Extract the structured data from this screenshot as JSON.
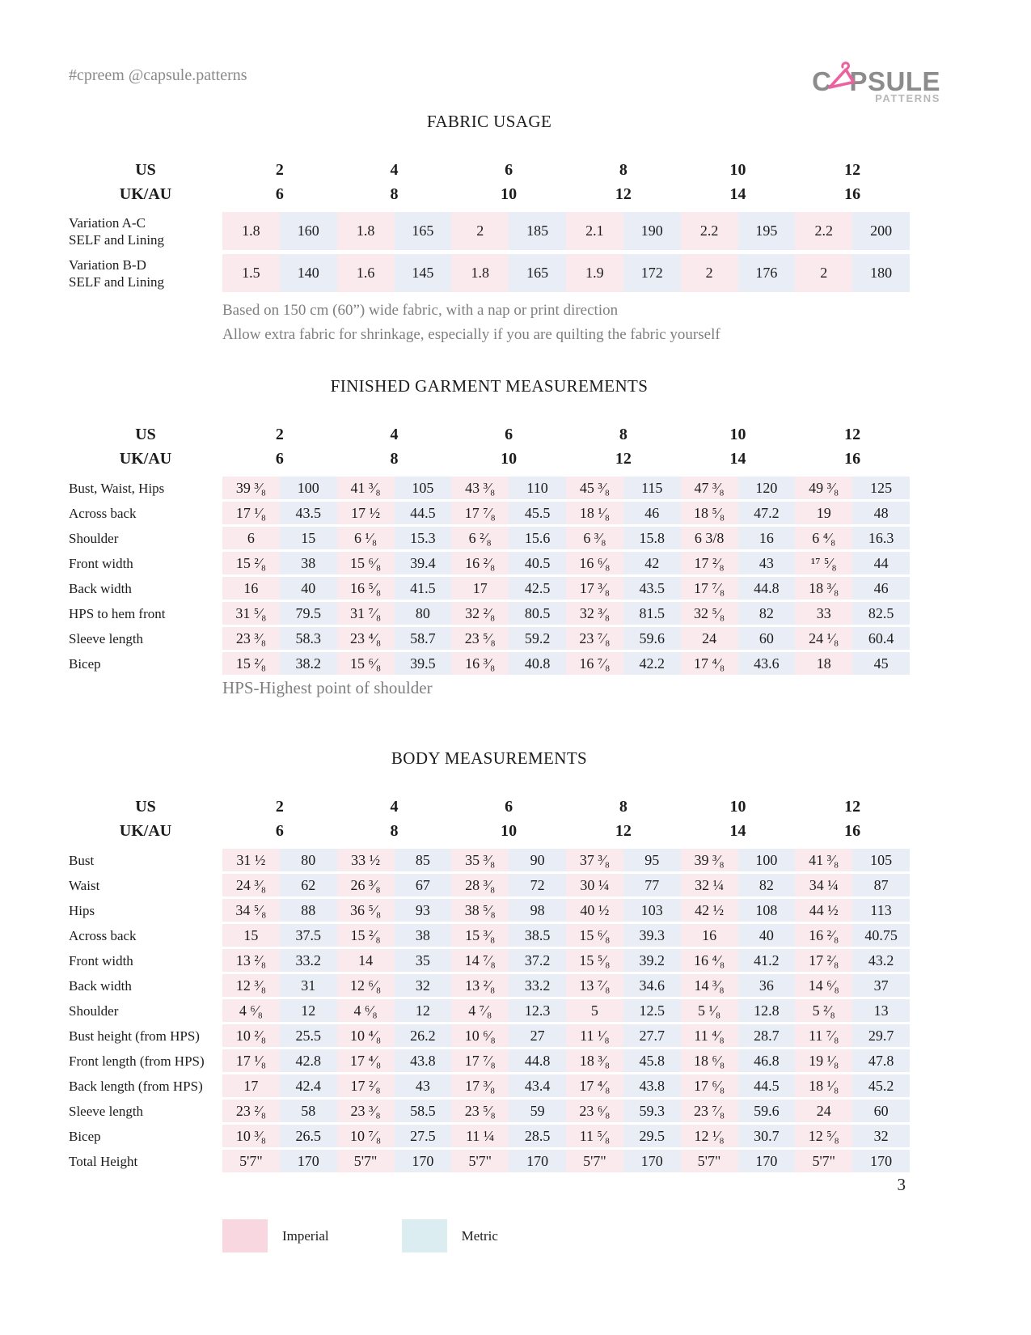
{
  "header": {
    "handle": "#cpreem @capsule.patterns"
  },
  "logo": {
    "part1": "C",
    "part2": "PSULE",
    "subtitle": "PATTERNS",
    "accent_color": "#ec619f",
    "text_color": "#8c8c8c"
  },
  "colors": {
    "imperial_cell": "#fbeaed",
    "metric_cell": "#e9eef6",
    "imperial_swatch": "#f9d7e1",
    "metric_swatch": "#dcedf2"
  },
  "size_header": {
    "us_label": "US",
    "ukau_label": "UK/AU",
    "us": [
      "2",
      "4",
      "6",
      "8",
      "10",
      "12"
    ],
    "ukau": [
      "6",
      "8",
      "10",
      "12",
      "14",
      "16"
    ]
  },
  "fabric_usage": {
    "title": "FABRIC USAGE",
    "rows": [
      {
        "label_lines": [
          "Variation A-C",
          "SELF and Lining"
        ],
        "values": [
          "1.8",
          "160",
          "1.8",
          "165",
          "2",
          "185",
          "2.1",
          "190",
          "2.2",
          "195",
          "2.2",
          "200"
        ]
      },
      {
        "label_lines": [
          "Variation B-D",
          "SELF and Lining"
        ],
        "values": [
          "1.5",
          "140",
          "1.6",
          "145",
          "1.8",
          "165",
          "1.9",
          "172",
          "2",
          "176",
          "2",
          "180"
        ]
      }
    ],
    "notes": [
      "Based on 150 cm (60”) wide fabric, with a nap or print direction",
      "Allow extra fabric for shrinkage, especially if you are quilting the fabric yourself"
    ]
  },
  "finished_garment": {
    "title": "FINISHED GARMENT MEASUREMENTS",
    "note": "HPS-Highest point of shoulder",
    "rows": [
      {
        "label": "Bust, Waist, Hips",
        "values": [
          "39 ³⁄₈",
          "100",
          "41 ³⁄₈",
          "105",
          "43 ³⁄₈",
          "110",
          "45 ³⁄₈",
          "115",
          "47 ³⁄₈",
          "120",
          "49 ³⁄₈",
          "125"
        ]
      },
      {
        "label": "Across back",
        "values": [
          "17 ¹⁄₈",
          "43.5",
          "17 ½",
          "44.5",
          "17 ⁷⁄₈",
          "45.5",
          "18 ¹⁄₈",
          "46",
          "18 ⁵⁄₈",
          "47.2",
          "19",
          "48"
        ]
      },
      {
        "label": "Shoulder",
        "values": [
          "6",
          "15",
          "6 ¹⁄₈",
          "15.3",
          "6 ²⁄₈",
          "15.6",
          "6 ³⁄₈",
          "15.8",
          "6 3/8",
          "16",
          "6 ⁴⁄₈",
          "16.3"
        ]
      },
      {
        "label": "Front width",
        "values": [
          "15 ²⁄₈",
          "38",
          "15 ⁶⁄₈",
          "39.4",
          "16 ²⁄₈",
          "40.5",
          "16 ⁶⁄₈",
          "42",
          "17 ²⁄₈",
          "43",
          "¹⁷ ⁵⁄₈",
          "44"
        ]
      },
      {
        "label": "Back width",
        "values": [
          "16",
          "40",
          "16 ⁵⁄₈",
          "41.5",
          "17",
          "42.5",
          "17 ³⁄₈",
          "43.5",
          "17 ⁷⁄₈",
          "44.8",
          "18 ³⁄₈",
          "46"
        ]
      },
      {
        "label": "HPS to hem front",
        "values": [
          "31 ⁵⁄₈",
          "79.5",
          "31 ⁷⁄₈",
          "80",
          "32 ²⁄₈",
          "80.5",
          "32 ³⁄₈",
          "81.5",
          "32 ⁵⁄₈",
          "82",
          "33",
          "82.5"
        ]
      },
      {
        "label": "Sleeve length",
        "values": [
          "23 ³⁄₈",
          "58.3",
          "23 ⁴⁄₈",
          "58.7",
          "23 ⁵⁄₈",
          "59.2",
          "23 ⁷⁄₈",
          "59.6",
          "24",
          "60",
          "24 ¹⁄₈",
          "60.4"
        ]
      },
      {
        "label": "Bicep",
        "values": [
          "15 ²⁄₈",
          "38.2",
          "15 ⁶⁄₈",
          "39.5",
          "16 ³⁄₈",
          "40.8",
          "16 ⁷⁄₈",
          "42.2",
          "17 ⁴⁄₈",
          "43.6",
          "18",
          "45"
        ]
      }
    ]
  },
  "body_measurements": {
    "title": "BODY MEASUREMENTS",
    "rows": [
      {
        "label": "Bust",
        "values": [
          "31 ½",
          "80",
          "33 ½",
          "85",
          "35 ³⁄₈",
          "90",
          "37 ³⁄₈",
          "95",
          "39 ³⁄₈",
          "100",
          "41 ³⁄₈",
          "105"
        ]
      },
      {
        "label": "Waist",
        "values": [
          "24 ³⁄₈",
          "62",
          "26 ³⁄₈",
          "67",
          "28 ³⁄₈",
          "72",
          "30 ¼",
          "77",
          "32 ¼",
          "82",
          "34 ¼",
          "87"
        ]
      },
      {
        "label": "Hips",
        "values": [
          "34 ⁵⁄₈",
          "88",
          "36 ⁵⁄₈",
          "93",
          "38 ⁵⁄₈",
          "98",
          "40 ½",
          "103",
          "42 ½",
          "108",
          "44 ½",
          "113"
        ]
      },
      {
        "label": "Across back",
        "values": [
          "15",
          "37.5",
          "15 ²⁄₈",
          "38",
          "15 ³⁄₈",
          "38.5",
          "15 ⁶⁄₈",
          "39.3",
          "16",
          "40",
          "16 ²⁄₈",
          "40.75"
        ]
      },
      {
        "label": "Front width",
        "values": [
          "13 ²⁄₈",
          "33.2",
          "14",
          "35",
          "14 ⁷⁄₈",
          "37.2",
          "15 ⁵⁄₈",
          "39.2",
          "16 ⁴⁄₈",
          "41.2",
          "17 ²⁄₈",
          "43.2"
        ]
      },
      {
        "label": "Back width",
        "values": [
          "12 ³⁄₈",
          "31",
          "12 ⁶⁄₈",
          "32",
          "13 ²⁄₈",
          "33.2",
          "13 ⁷⁄₈",
          "34.6",
          "14 ³⁄₈",
          "36",
          "14 ⁶⁄₈",
          "37"
        ]
      },
      {
        "label": "Shoulder",
        "values": [
          "4 ⁶⁄₈",
          "12",
          "4 ⁶⁄₈",
          "12",
          "4 ⁷⁄₈",
          "12.3",
          "5",
          "12.5",
          "5 ¹⁄₈",
          "12.8",
          "5 ²⁄₈",
          "13"
        ]
      },
      {
        "label": "Bust height (from HPS)",
        "values": [
          "10 ²⁄₈",
          "25.5",
          "10 ⁴⁄₈",
          "26.2",
          "10 ⁶⁄₈",
          "27",
          "11 ¹⁄₈",
          "27.7",
          "11 ⁴⁄₈",
          "28.7",
          "11 ⁷⁄₈",
          "29.7"
        ]
      },
      {
        "label": "Front length (from HPS)",
        "values": [
          "17 ¹⁄₈",
          "42.8",
          "17 ⁴⁄₈",
          "43.8",
          "17 ⁷⁄₈",
          "44.8",
          "18 ³⁄₈",
          "45.8",
          "18 ⁶⁄₈",
          "46.8",
          "19 ¹⁄₈",
          "47.8"
        ]
      },
      {
        "label": "Back length (from HPS)",
        "values": [
          "17",
          "42.4",
          "17 ²⁄₈",
          "43",
          "17 ³⁄₈",
          "43.4",
          "17 ⁴⁄₈",
          "43.8",
          "17 ⁶⁄₈",
          "44.5",
          "18 ¹⁄₈",
          "45.2"
        ]
      },
      {
        "label": "Sleeve length",
        "values": [
          "23 ²⁄₈",
          "58",
          "23 ³⁄₈",
          "58.5",
          "23 ⁵⁄₈",
          "59",
          "23 ⁶⁄₈",
          "59.3",
          "23 ⁷⁄₈",
          "59.6",
          "24",
          "60"
        ]
      },
      {
        "label": "Bicep",
        "values": [
          "10 ³⁄₈",
          "26.5",
          "10 ⁷⁄₈",
          "27.5",
          "11 ¼",
          "28.5",
          "11 ⁵⁄₈",
          "29.5",
          "12 ¹⁄₈",
          "30.7",
          "12 ⁵⁄₈",
          "32"
        ]
      },
      {
        "label": "Total Height",
        "values": [
          "5'7\"",
          "170",
          "5'7\"",
          "170",
          "5'7\"",
          "170",
          "5'7\"",
          "170",
          "5'7\"",
          "170",
          "5'7\"",
          "170"
        ]
      }
    ]
  },
  "legend": {
    "imperial_label": "Imperial",
    "metric_label": "Metric"
  },
  "page_number": "3"
}
